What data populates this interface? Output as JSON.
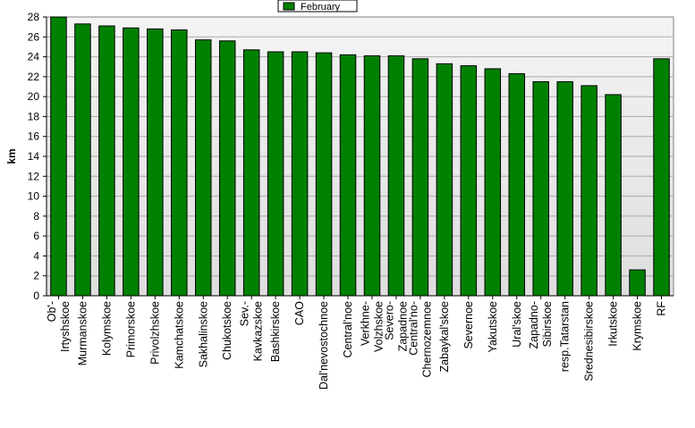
{
  "chart_data": {
    "type": "bar",
    "title": "",
    "xlabel": "",
    "ylabel": "km",
    "ylim": [
      0,
      28
    ],
    "yticks": [
      0,
      2,
      4,
      6,
      8,
      10,
      12,
      14,
      16,
      18,
      20,
      22,
      24,
      26,
      28
    ],
    "grid": true,
    "legend_position": "top-center",
    "bar_color": "#008000",
    "plot_background": "gradient light gray",
    "categories": [
      [
        "Ob'-",
        "Irtyshskoe"
      ],
      [
        "Murmanskoe"
      ],
      [
        "Kolymskoe"
      ],
      [
        "Primorskoe"
      ],
      [
        "Privolzhskoe"
      ],
      [
        "Kamchatskoe"
      ],
      [
        "Sakhalinskoe"
      ],
      [
        "Chukotskoe"
      ],
      [
        "Sev.-",
        "Kavkazskoe"
      ],
      [
        "Bashkirskoe"
      ],
      [
        "CAO"
      ],
      [
        "Dal'nevostochnoe"
      ],
      [
        "Central'noe"
      ],
      [
        "Verkhne-",
        "Volzhskoe"
      ],
      [
        "Severo-",
        "Zapadnoe"
      ],
      [
        "Central'no-",
        "Chernozemnoe"
      ],
      [
        "Zabaykal'skoe"
      ],
      [
        "Severnoe"
      ],
      [
        "Yakutskoe"
      ],
      [
        "Ural'skoe"
      ],
      [
        "Zapadno-",
        "Sibirskoe"
      ],
      [
        "resp.Tatarstan"
      ],
      [
        "Srednesibirskoe"
      ],
      [
        "Irkutskoe"
      ],
      [
        "Krymskoe"
      ],
      [
        "RF"
      ]
    ],
    "series": [
      {
        "name": "February",
        "values": [
          28.0,
          27.3,
          27.1,
          26.9,
          26.8,
          26.7,
          25.7,
          25.6,
          24.7,
          24.5,
          24.5,
          24.4,
          24.2,
          24.1,
          24.1,
          23.8,
          23.3,
          23.1,
          22.8,
          22.3,
          21.5,
          21.5,
          21.1,
          20.2,
          2.6,
          23.8
        ]
      }
    ]
  }
}
